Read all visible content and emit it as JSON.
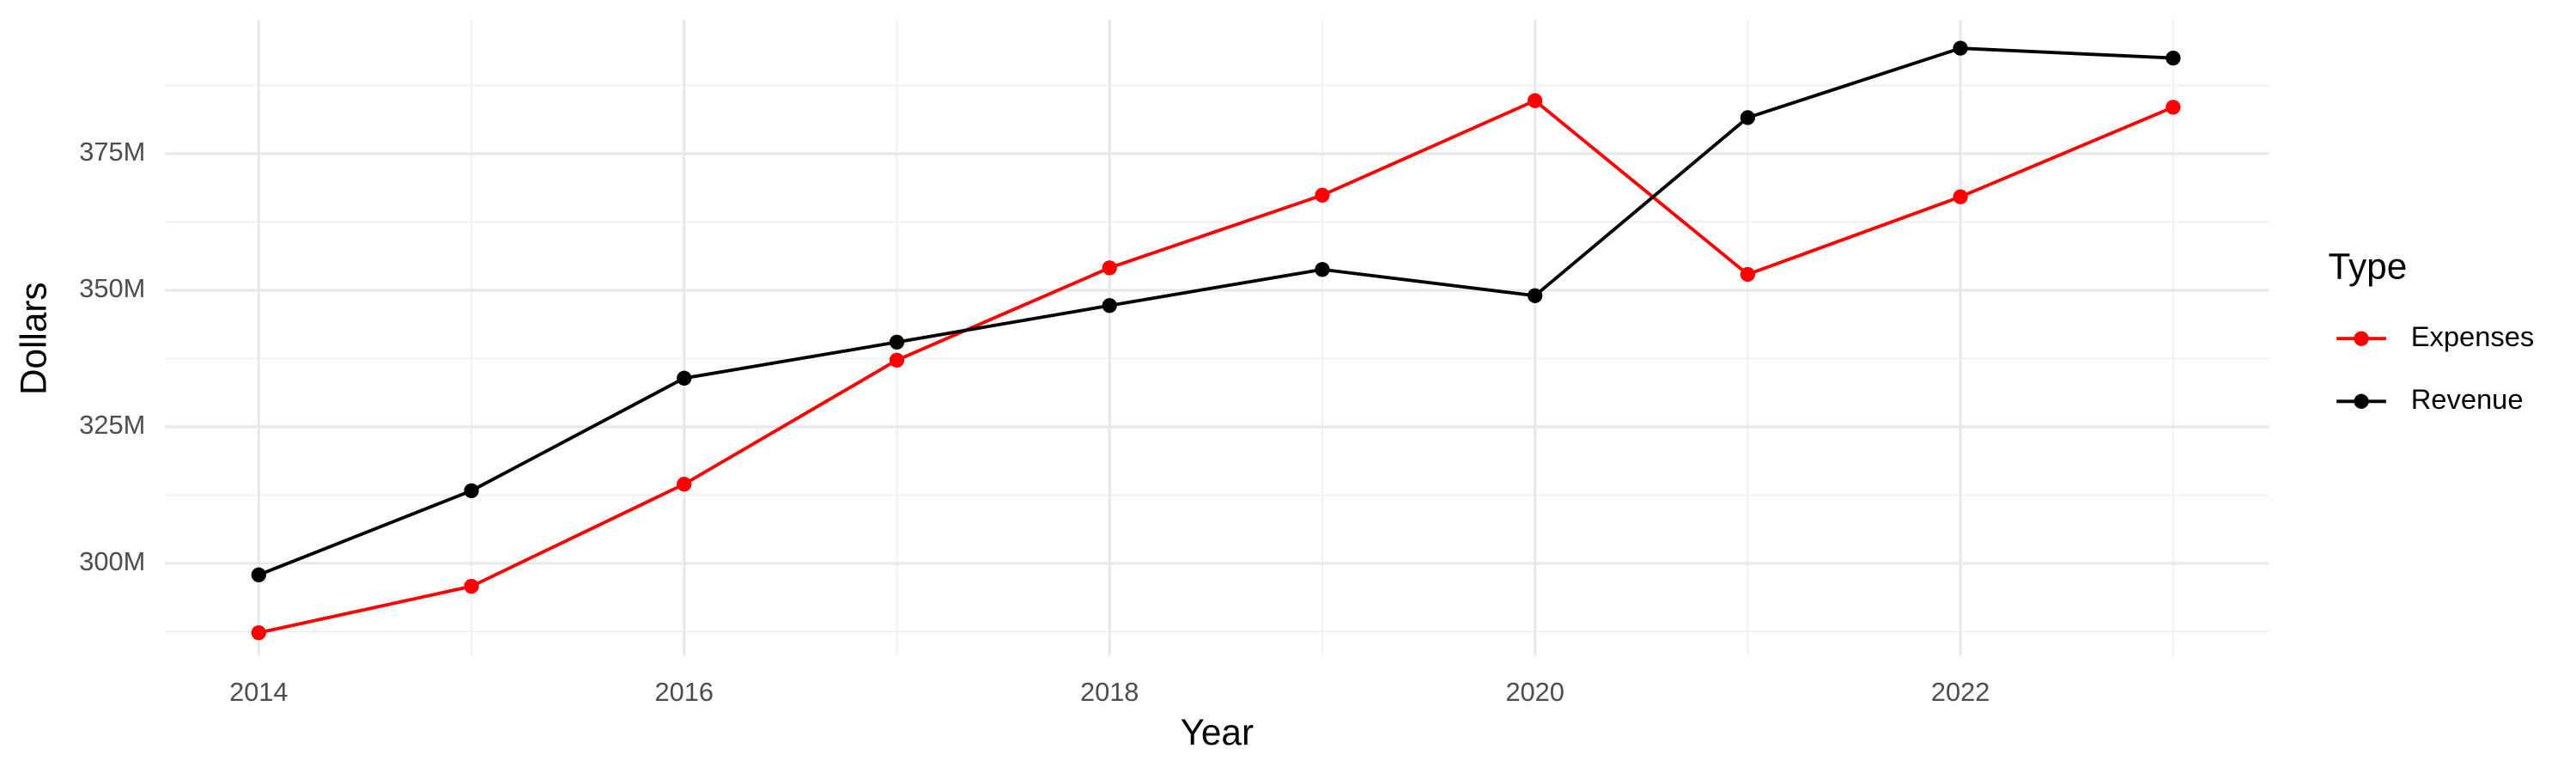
{
  "chart_data": {
    "type": "line",
    "x_label": "Year",
    "y_label": "Dollars",
    "x": [
      2014,
      2015,
      2016,
      2017,
      2018,
      2019,
      2020,
      2021,
      2022,
      2023
    ],
    "series": [
      {
        "name": "Expenses",
        "color": "#ff0000",
        "values": [
          287300000,
          295800000,
          314500000,
          337200000,
          354100000,
          367400000,
          384700000,
          352900000,
          367100000,
          383500000
        ]
      },
      {
        "name": "Revenue",
        "color": "#000000",
        "values": [
          297900000,
          313300000,
          333900000,
          340500000,
          347200000,
          353800000,
          349000000,
          381600000,
          394300000,
          392500000
        ]
      }
    ],
    "xlim": [
      2013.56,
      2023.45
    ],
    "ylim": [
      283100000,
      399500000
    ],
    "xticks": [
      2014,
      2016,
      2018,
      2020,
      2022
    ],
    "x_minor_ticks": [
      2015,
      2017,
      2019,
      2021,
      2023
    ],
    "yticks": [
      {
        "value": 300000000,
        "label": "300M"
      },
      {
        "value": 325000000,
        "label": "325M"
      },
      {
        "value": 350000000,
        "label": "350M"
      },
      {
        "value": 375000000,
        "label": "375M"
      }
    ],
    "y_minor_ticks": [
      287500000,
      312500000,
      337500000,
      362500000,
      387500000
    ],
    "grid": true,
    "legend_title": "Type",
    "legend_position": "right"
  }
}
